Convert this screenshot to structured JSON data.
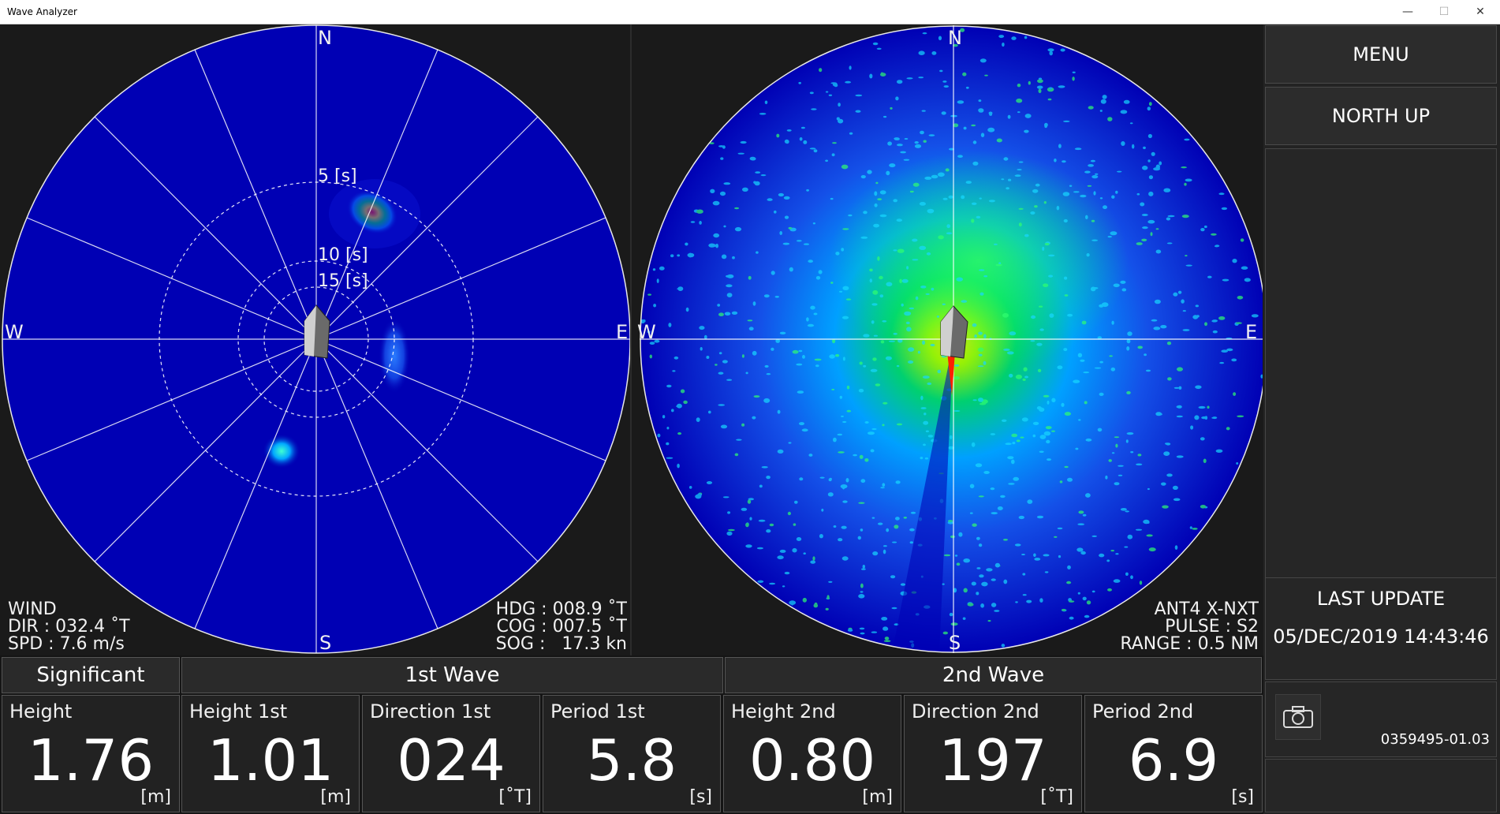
{
  "window": {
    "title": "Wave Analyzer",
    "min_glyph": "—",
    "max_glyph": "☐",
    "close_glyph": "✕"
  },
  "left_plot": {
    "cardinals": {
      "n": "N",
      "s": "S",
      "e": "E",
      "w": "W"
    },
    "ring_labels": [
      "5 [s]",
      "10 [s]",
      "15 [s]"
    ],
    "wind": {
      "title": "WIND",
      "dir": "DIR : 032.4 ˚T",
      "spd": "SPD : 7.6 m/s"
    },
    "nav": {
      "hdg": "HDG : 008.9 ˚T",
      "cog": "COG : 007.5 ˚T",
      "sog": "SOG :   17.3 kn"
    }
  },
  "right_plot": {
    "cardinals": {
      "n": "N",
      "s": "S",
      "e": "E",
      "w": "W"
    },
    "antenna": "ANT4 X-NXT",
    "pulse": "PULSE : S2",
    "range": "RANGE : 0.5 NM"
  },
  "sidebar": {
    "menu_label": "MENU",
    "orientation_label": "NORTH UP",
    "last_update_title": "LAST UPDATE",
    "last_update_value": "05/DEC/2019 14:43:46",
    "version": "0359495-01.03"
  },
  "bottom": {
    "headers": {
      "significant": "Significant",
      "first": "1st Wave",
      "second": "2nd Wave"
    },
    "cells": [
      {
        "label": "Height",
        "value": "1.76",
        "unit": "[m]"
      },
      {
        "label": "Height 1st",
        "value": "1.01",
        "unit": "[m]"
      },
      {
        "label": "Direction 1st",
        "value": "024",
        "unit": "[˚T]"
      },
      {
        "label": "Period 1st",
        "value": "5.8",
        "unit": "[s]"
      },
      {
        "label": "Height 2nd",
        "value": "0.80",
        "unit": "[m]"
      },
      {
        "label": "Direction 2nd",
        "value": "197",
        "unit": "[˚T]"
      },
      {
        "label": "Period 2nd",
        "value": "6.9",
        "unit": "[s]"
      }
    ]
  },
  "colors": {
    "plot_blue": "#0000b4",
    "spectrum_blob": "#00e040",
    "peak": "#ff2000"
  }
}
